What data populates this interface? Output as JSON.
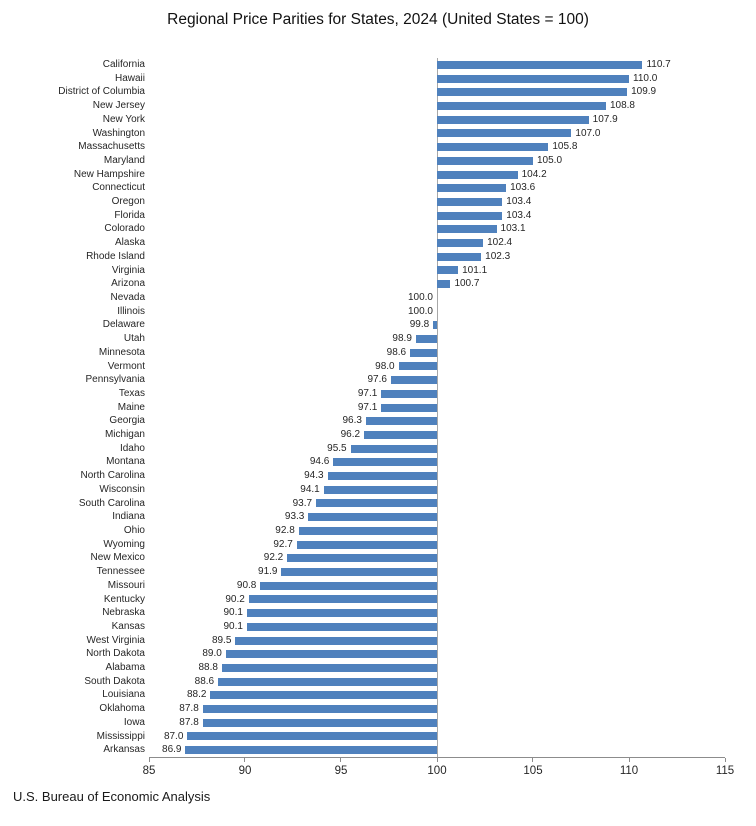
{
  "title": "Regional Price Parities for States, 2024 (United States = 100)",
  "source": "U.S. Bureau of Economic Analysis",
  "chart_data": {
    "type": "bar",
    "orientation": "horizontal",
    "title": "Regional Price Parities for States, 2024 (United States = 100)",
    "xlabel": "",
    "ylabel": "",
    "xlim": [
      85,
      115
    ],
    "xticks": [
      85,
      90,
      95,
      100,
      105,
      110,
      115
    ],
    "baseline": 100,
    "grid": false,
    "legend": false,
    "bar_color": "#4f81bd",
    "reference_line_color": "#a8a8a8",
    "axis_color": "#8c8c8c",
    "label_color": "#262626",
    "categories": [
      "California",
      "Hawaii",
      "District of Columbia",
      "New Jersey",
      "New York",
      "Washington",
      "Massachusetts",
      "Maryland",
      "New Hampshire",
      "Connecticut",
      "Oregon",
      "Florida",
      "Colorado",
      "Alaska",
      "Rhode Island",
      "Virginia",
      "Arizona",
      "Nevada",
      "Illinois",
      "Delaware",
      "Utah",
      "Minnesota",
      "Vermont",
      "Pennsylvania",
      "Texas",
      "Maine",
      "Georgia",
      "Michigan",
      "Idaho",
      "Montana",
      "North Carolina",
      "Wisconsin",
      "South Carolina",
      "Indiana",
      "Ohio",
      "Wyoming",
      "New Mexico",
      "Tennessee",
      "Missouri",
      "Kentucky",
      "Nebraska",
      "Kansas",
      "West Virginia",
      "North Dakota",
      "Alabama",
      "South Dakota",
      "Louisiana",
      "Oklahoma",
      "Iowa",
      "Mississippi",
      "Arkansas"
    ],
    "values": [
      110.7,
      110.0,
      109.9,
      108.8,
      107.9,
      107.0,
      105.8,
      105.0,
      104.2,
      103.6,
      103.4,
      103.4,
      103.1,
      102.4,
      102.3,
      101.1,
      100.7,
      100.0,
      100.0,
      99.8,
      98.9,
      98.6,
      98.0,
      97.6,
      97.1,
      97.1,
      96.3,
      96.2,
      95.5,
      94.6,
      94.3,
      94.1,
      93.7,
      93.3,
      92.8,
      92.7,
      92.2,
      91.9,
      90.8,
      90.2,
      90.1,
      90.1,
      89.5,
      89.0,
      88.8,
      88.6,
      88.2,
      87.8,
      87.8,
      87.0,
      86.9
    ]
  }
}
